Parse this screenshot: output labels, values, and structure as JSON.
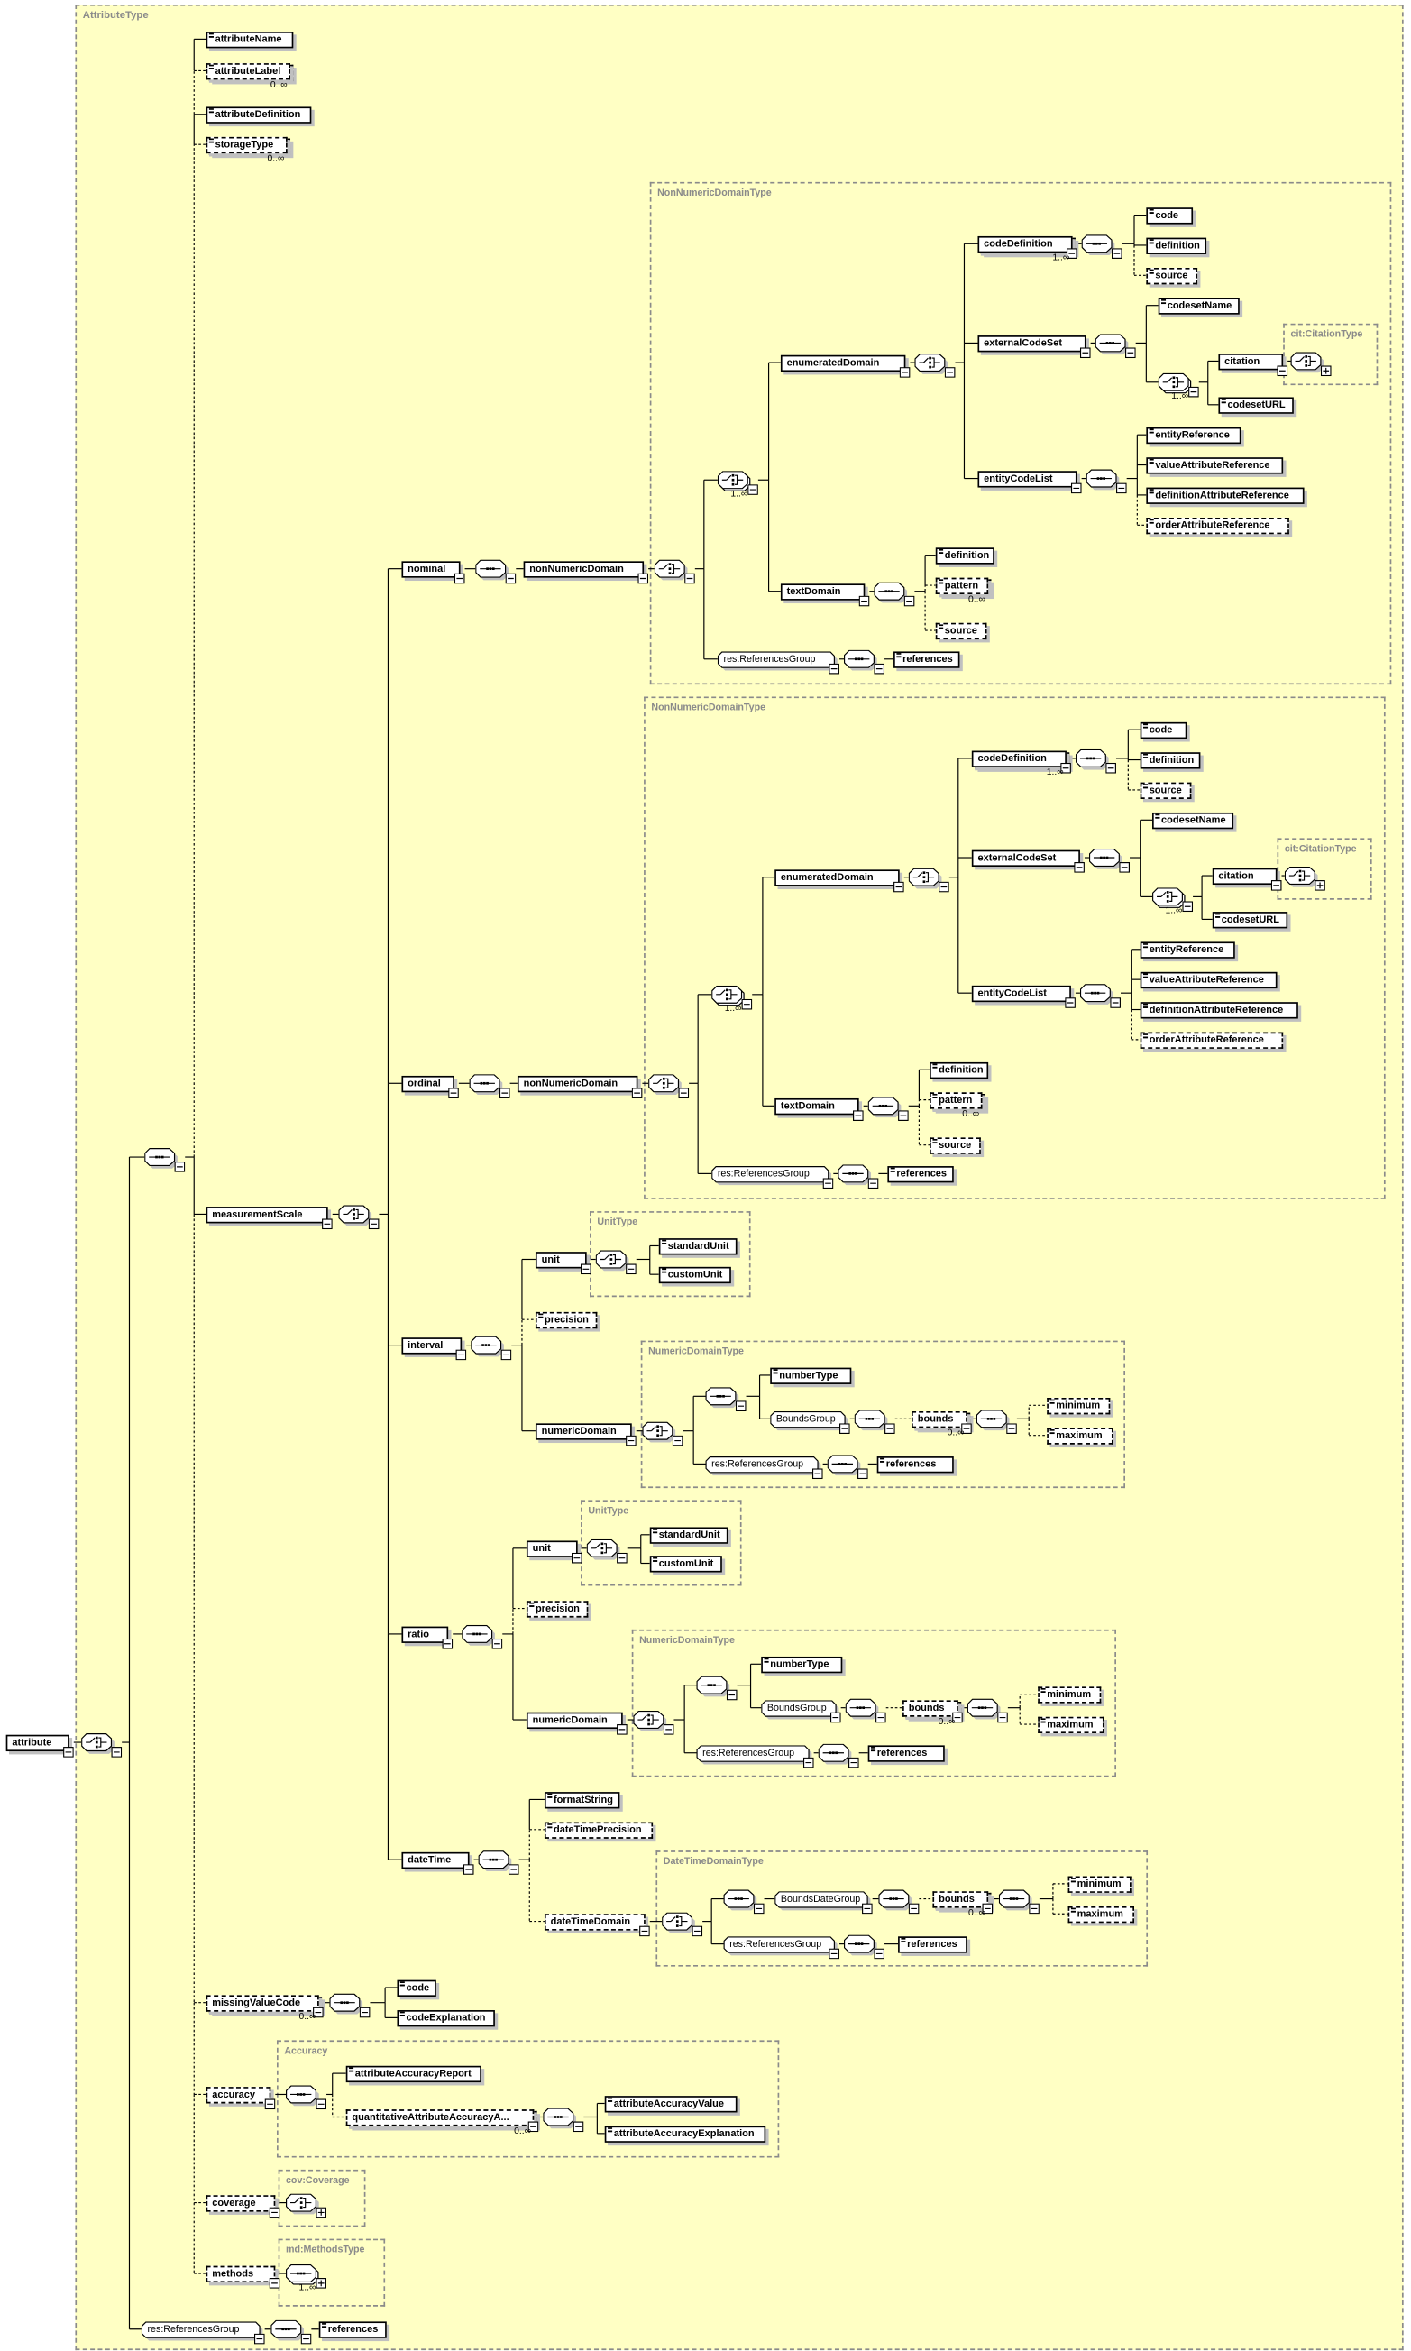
{
  "diagram_title": "AttributeType",
  "type_boxes": {
    "nom_tb": "NonNumericDomainType",
    "nom_citb": "cit:CitationType",
    "ord_tb": "NonNumericDomainType",
    "ord_citb": "cit:CitationType",
    "int_ub": "UnitType",
    "int_nb": "NumericDomainType",
    "rat_ub": "UnitType",
    "rat_nb": "NumericDomainType",
    "dt_tb": "DateTimeDomainType",
    "acc_tb": "Accuracy",
    "cov_tb": "cov:Coverage",
    "meth_tb": "md:MethodsType"
  },
  "nodes": {
    "attribute": {
      "label": "attribute"
    },
    "c0": {
      "compositor": "choice"
    },
    "s0": {
      "compositor": "sequence"
    },
    "an": {
      "label": "attributeName"
    },
    "al": {
      "label": "attributeLabel",
      "optional": true,
      "occurrence": "0..∞"
    },
    "ad": {
      "label": "attributeDefinition"
    },
    "st": {
      "label": "storageType",
      "optional": true,
      "occurrence": "0..∞"
    },
    "ms": {
      "label": "measurementScale"
    },
    "msc": {
      "compositor": "choice"
    },
    "nom_el": {
      "label": "nominal"
    },
    "nom_s": {
      "compositor": "sequence"
    },
    "nom_nnd": {
      "label": "nonNumericDomain"
    },
    "nom_c": {
      "compositor": "choice"
    },
    "nom_c2": {
      "compositor": "choice",
      "occurrence": "1..∞"
    },
    "nom_ed": {
      "label": "enumeratedDomain"
    },
    "nom_edc": {
      "compositor": "choice"
    },
    "nom_cd": {
      "label": "codeDefinition",
      "occurrence": "1..∞"
    },
    "nom_cds": {
      "compositor": "sequence"
    },
    "nom_cd_code": {
      "label": "code"
    },
    "nom_cd_def": {
      "label": "definition"
    },
    "nom_cd_src": {
      "label": "source",
      "optional": true
    },
    "nom_ecs": {
      "label": "externalCodeSet"
    },
    "nom_ecss": {
      "compositor": "sequence"
    },
    "nom_csn": {
      "label": "codesetName"
    },
    "nom_ecsc": {
      "compositor": "choice",
      "occurrence": "1..∞"
    },
    "nom_cit": {
      "label": "citation"
    },
    "nom_citc": {
      "compositor": "choice",
      "collapsed": true
    },
    "nom_csu": {
      "label": "codesetURL"
    },
    "nom_ecl": {
      "label": "entityCodeList"
    },
    "nom_ecls": {
      "compositor": "sequence"
    },
    "nom_er": {
      "label": "entityReference"
    },
    "nom_var": {
      "label": "valueAttributeReference"
    },
    "nom_dar": {
      "label": "definitionAttributeReference"
    },
    "nom_oar": {
      "label": "orderAttributeReference",
      "optional": true
    },
    "nom_td": {
      "label": "textDomain"
    },
    "nom_tds": {
      "compositor": "sequence"
    },
    "nom_tdd": {
      "label": "definition"
    },
    "nom_tdp": {
      "label": "pattern",
      "optional": true,
      "occurrence": "0..∞"
    },
    "nom_tdsrc": {
      "label": "source",
      "optional": true
    },
    "nom_rg": {
      "label": "res:ReferencesGroup"
    },
    "nom_rgs": {
      "compositor": "sequence"
    },
    "nom_ref": {
      "label": "references"
    },
    "ord_el": {
      "label": "ordinal"
    },
    "ord_s": {
      "compositor": "sequence"
    },
    "ord_nnd": {
      "label": "nonNumericDomain"
    },
    "ord_c": {
      "compositor": "choice"
    },
    "ord_c2": {
      "compositor": "choice",
      "occurrence": "1..∞"
    },
    "ord_ed": {
      "label": "enumeratedDomain"
    },
    "ord_edc": {
      "compositor": "choice"
    },
    "ord_cd": {
      "label": "codeDefinition",
      "occurrence": "1..∞"
    },
    "ord_cds": {
      "compositor": "sequence"
    },
    "ord_cd_code": {
      "label": "code"
    },
    "ord_cd_def": {
      "label": "definition"
    },
    "ord_cd_src": {
      "label": "source",
      "optional": true
    },
    "ord_ecs": {
      "label": "externalCodeSet"
    },
    "ord_ecss": {
      "compositor": "sequence"
    },
    "ord_csn": {
      "label": "codesetName"
    },
    "ord_ecsc": {
      "compositor": "choice",
      "occurrence": "1..∞"
    },
    "ord_cit": {
      "label": "citation"
    },
    "ord_citc": {
      "compositor": "choice",
      "collapsed": true
    },
    "ord_csu": {
      "label": "codesetURL"
    },
    "ord_ecl": {
      "label": "entityCodeList"
    },
    "ord_ecls": {
      "compositor": "sequence"
    },
    "ord_er": {
      "label": "entityReference"
    },
    "ord_var": {
      "label": "valueAttributeReference"
    },
    "ord_dar": {
      "label": "definitionAttributeReference"
    },
    "ord_oar": {
      "label": "orderAttributeReference",
      "optional": true
    },
    "ord_td": {
      "label": "textDomain"
    },
    "ord_tds": {
      "compositor": "sequence"
    },
    "ord_tdd": {
      "label": "definition"
    },
    "ord_tdp": {
      "label": "pattern",
      "optional": true,
      "occurrence": "0..∞"
    },
    "ord_tdsrc": {
      "label": "source",
      "optional": true
    },
    "ord_rg": {
      "label": "res:ReferencesGroup"
    },
    "ord_rgs": {
      "compositor": "sequence"
    },
    "ord_ref": {
      "label": "references"
    },
    "int_el": {
      "label": "interval"
    },
    "int_s": {
      "compositor": "sequence"
    },
    "int_unit": {
      "label": "unit"
    },
    "int_uc": {
      "compositor": "choice"
    },
    "int_su": {
      "label": "standardUnit"
    },
    "int_cu": {
      "label": "customUnit"
    },
    "int_prec": {
      "label": "precision",
      "optional": true
    },
    "int_nd": {
      "label": "numericDomain"
    },
    "int_ndc": {
      "compositor": "choice"
    },
    "int_ns": {
      "compositor": "sequence"
    },
    "int_nt": {
      "label": "numberType"
    },
    "int_bg": {
      "label": "BoundsGroup"
    },
    "int_bgs": {
      "compositor": "sequence"
    },
    "int_bnd": {
      "label": "bounds",
      "optional": true,
      "occurrence": "0..∞"
    },
    "int_bnds": {
      "compositor": "sequence"
    },
    "int_min": {
      "label": "minimum",
      "optional": true
    },
    "int_max": {
      "label": "maximum",
      "optional": true
    },
    "int_nrg": {
      "label": "res:ReferencesGroup"
    },
    "int_nrgs": {
      "compositor": "sequence"
    },
    "int_nref": {
      "label": "references"
    },
    "rat_el": {
      "label": "ratio"
    },
    "rat_s": {
      "compositor": "sequence"
    },
    "rat_unit": {
      "label": "unit"
    },
    "rat_uc": {
      "compositor": "choice"
    },
    "rat_su": {
      "label": "standardUnit"
    },
    "rat_cu": {
      "label": "customUnit"
    },
    "rat_prec": {
      "label": "precision",
      "optional": true
    },
    "rat_nd": {
      "label": "numericDomain"
    },
    "rat_ndc": {
      "compositor": "choice"
    },
    "rat_ns": {
      "compositor": "sequence"
    },
    "rat_nt": {
      "label": "numberType"
    },
    "rat_bg": {
      "label": "BoundsGroup"
    },
    "rat_bgs": {
      "compositor": "sequence"
    },
    "rat_bnd": {
      "label": "bounds",
      "optional": true,
      "occurrence": "0..∞"
    },
    "rat_bnds": {
      "compositor": "sequence"
    },
    "rat_min": {
      "label": "minimum",
      "optional": true
    },
    "rat_max": {
      "label": "maximum",
      "optional": true
    },
    "rat_nrg": {
      "label": "res:ReferencesGroup"
    },
    "rat_nrgs": {
      "compositor": "sequence"
    },
    "rat_nref": {
      "label": "references"
    },
    "dt_el": {
      "label": "dateTime"
    },
    "dt_s": {
      "compositor": "sequence"
    },
    "dt_fs": {
      "label": "formatString"
    },
    "dt_dtp": {
      "label": "dateTimePrecision",
      "optional": true
    },
    "dt_dtd": {
      "label": "dateTimeDomain",
      "optional": true
    },
    "dt_c": {
      "compositor": "choice"
    },
    "dt_q": {
      "compositor": "sequence"
    },
    "dt_bdg": {
      "label": "BoundsDateGroup"
    },
    "dt_bgs": {
      "compositor": "sequence"
    },
    "dt_bnd": {
      "label": "bounds",
      "optional": true,
      "occurrence": "0..∞"
    },
    "dt_bnds": {
      "compositor": "sequence"
    },
    "dt_min": {
      "label": "minimum",
      "optional": true
    },
    "dt_max": {
      "label": "maximum",
      "optional": true
    },
    "dt_rg": {
      "label": "res:ReferencesGroup"
    },
    "dt_rgs": {
      "compositor": "sequence"
    },
    "dt_ref": {
      "label": "references"
    },
    "mvc": {
      "label": "missingValueCode",
      "optional": true,
      "occurrence": "0..∞"
    },
    "mv_s": {
      "compositor": "sequence"
    },
    "mv_code": {
      "label": "code"
    },
    "mv_expl": {
      "label": "codeExplanation"
    },
    "acc": {
      "label": "accuracy",
      "optional": true
    },
    "acc_s": {
      "compositor": "sequence"
    },
    "acc_rep": {
      "label": "attributeAccuracyReport"
    },
    "acc_q": {
      "label": "quantitativeAttributeAccuracyA...",
      "optional": true,
      "occurrence": "0..∞"
    },
    "acc_qs": {
      "compositor": "sequence"
    },
    "acc_val": {
      "label": "attributeAccuracyValue"
    },
    "acc_expl": {
      "label": "attributeAccuracyExplanation"
    },
    "cov": {
      "label": "coverage",
      "optional": true
    },
    "cov_c": {
      "compositor": "choice",
      "collapsed": true
    },
    "meth": {
      "label": "methods",
      "optional": true
    },
    "meth_s": {
      "compositor": "sequence",
      "collapsed": true,
      "occurrence": "1..∞"
    },
    "rg0": {
      "label": "res:ReferencesGroup"
    },
    "rg0s": {
      "compositor": "sequence"
    },
    "rg0r": {
      "label": "references"
    }
  }
}
